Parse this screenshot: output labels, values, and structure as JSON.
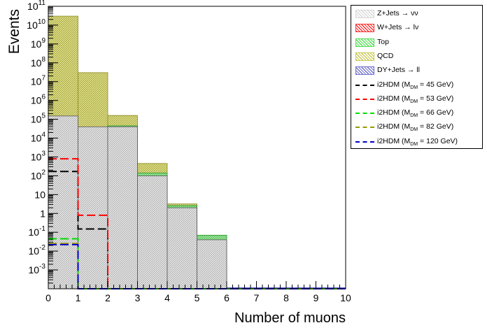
{
  "chart_data": {
    "type": "bar",
    "subtype": "stacked histogram with signal overlays",
    "ylabel": "Events",
    "xlabel": "Number of muons",
    "yscale": "log",
    "xlim": [
      0,
      10
    ],
    "ylim": [
      0.0001,
      100000000000
    ],
    "x_ticks": [
      "0",
      "1",
      "2",
      "3",
      "4",
      "5",
      "6",
      "7",
      "8",
      "9",
      "10"
    ],
    "y_ticks": [
      "10^-3",
      "10^-2",
      "10^-1",
      "1",
      "10",
      "10^2",
      "10^3",
      "10^4",
      "10^5",
      "10^6",
      "10^7",
      "10^8",
      "10^9",
      "10^10",
      "10^11"
    ],
    "bin_edges": [
      0,
      1,
      2,
      3,
      4,
      5,
      6,
      7,
      8,
      9,
      10
    ],
    "stacked_totals": [
      30000000000,
      30000000,
      160000,
      450,
      3.2,
      0.07,
      0,
      0,
      0,
      0
    ],
    "backgrounds": [
      {
        "name": "Z+Jets → νν",
        "color": "#d8d8d8",
        "values": [
          150000,
          40000,
          40000,
          100,
          2,
          0.04,
          0,
          0,
          0,
          0
        ]
      },
      {
        "name": "W+Jets → lν",
        "color": "#ff3030",
        "values": [
          0,
          0,
          0,
          0,
          0,
          0,
          0,
          0,
          0,
          0
        ]
      },
      {
        "name": "Top",
        "color": "#50e050",
        "values": [
          0,
          0,
          5000,
          40,
          0.6,
          0.03,
          0,
          0,
          0,
          0
        ]
      },
      {
        "name": "QCD",
        "color": "#c8c850",
        "values": [
          29999850000,
          29960000,
          115000,
          310,
          0.6,
          0,
          0,
          0,
          0,
          0
        ]
      },
      {
        "name": "DY+Jets → ll",
        "color": "#7070d0",
        "values": [
          0,
          0,
          0,
          0,
          0,
          0,
          0,
          0,
          0,
          0
        ]
      }
    ],
    "signals": [
      {
        "name": "i2HDM (M_DM =  45 GeV)",
        "color": "#000000",
        "values": [
          170,
          0.15,
          0,
          0,
          0,
          0,
          0,
          0,
          0,
          0
        ]
      },
      {
        "name": "i2HDM (M_DM =  53 GeV)",
        "color": "#ff0000",
        "values": [
          800,
          0.8,
          0,
          0,
          0,
          0,
          0,
          0,
          0,
          0
        ]
      },
      {
        "name": "i2HDM (M_DM =  66 GeV)",
        "color": "#00dd00",
        "values": [
          0.045,
          0,
          0,
          0,
          0,
          0,
          0,
          0,
          0,
          0
        ]
      },
      {
        "name": "i2HDM (M_DM =  82 GeV)",
        "color": "#999900",
        "values": [
          0.025,
          0,
          0,
          0,
          0,
          0,
          0,
          0,
          0,
          0
        ]
      },
      {
        "name": "i2HDM (M_DM = 120 GeV)",
        "color": "#0000cc",
        "values": [
          0.022,
          0,
          0,
          0,
          0,
          0,
          0,
          0,
          0,
          0
        ]
      }
    ],
    "legend_position": "top-right, outside plot",
    "grid": false
  },
  "legend": {
    "items": [
      {
        "label_main": "Z+Jets → νν",
        "sub": "",
        "label_tail": "",
        "kind": "fill",
        "color": "#d8d8d8",
        "pattern": "hatch-gray"
      },
      {
        "label_main": "W+Jets → lν",
        "sub": "",
        "label_tail": "",
        "kind": "fill",
        "color": "#ff3030",
        "pattern": "hatch-red"
      },
      {
        "label_main": "Top",
        "sub": "",
        "label_tail": "",
        "kind": "fill",
        "color": "#50e050",
        "pattern": "hatch-green"
      },
      {
        "label_main": "QCD",
        "sub": "",
        "label_tail": "",
        "kind": "fill",
        "color": "#c8c850",
        "pattern": "hatch-olive"
      },
      {
        "label_main": "DY+Jets → ll",
        "sub": "",
        "label_tail": "",
        "kind": "fill",
        "color": "#7070d0",
        "pattern": "hatch-blue"
      },
      {
        "label_main": "i2HDM (M",
        "sub": "DM",
        "label_tail": " =  45 GeV)",
        "kind": "line",
        "color": "#000000"
      },
      {
        "label_main": "i2HDM (M",
        "sub": "DM",
        "label_tail": " =  53 GeV)",
        "kind": "line",
        "color": "#ff0000"
      },
      {
        "label_main": "i2HDM (M",
        "sub": "DM",
        "label_tail": " =  66 GeV)",
        "kind": "line",
        "color": "#00dd00"
      },
      {
        "label_main": "i2HDM (M",
        "sub": "DM",
        "label_tail": " =  82 GeV)",
        "kind": "line",
        "color": "#999900"
      },
      {
        "label_main": "i2HDM (M",
        "sub": "DM",
        "label_tail": " = 120 GeV)",
        "kind": "line",
        "color": "#0000cc"
      }
    ]
  }
}
